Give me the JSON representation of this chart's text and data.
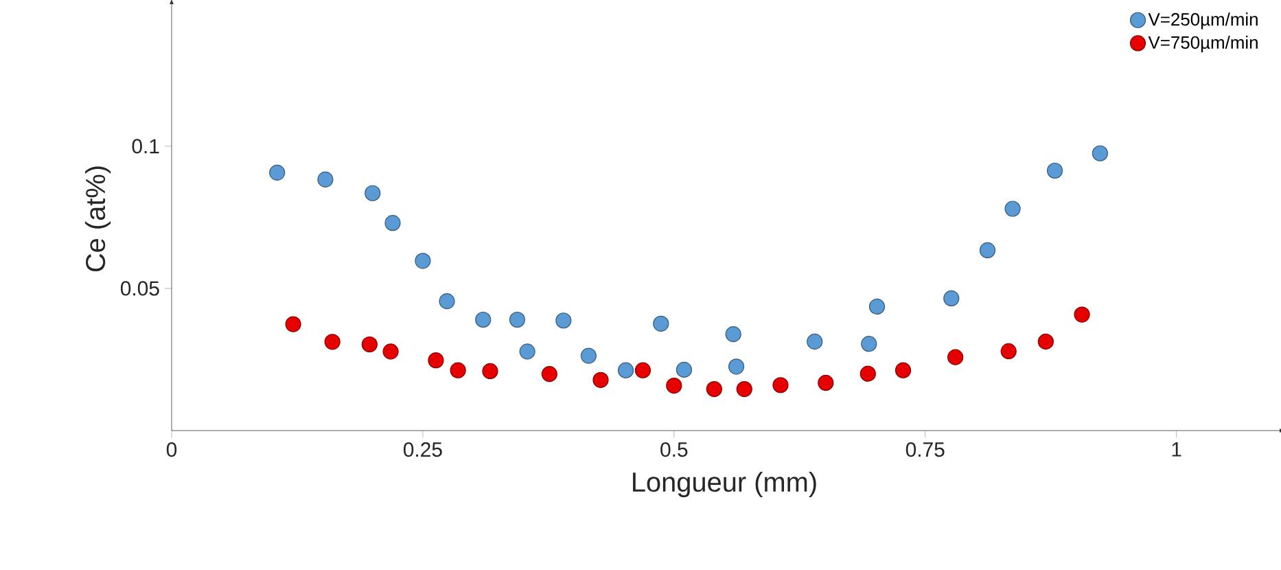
{
  "chart_data": {
    "type": "scatter",
    "xlabel": "Longueur (mm)",
    "ylabel": "Ce (at%)",
    "xlim": [
      0,
      1.1
    ],
    "ylim": [
      0,
      0.149
    ],
    "xticks": [
      0,
      0.25,
      0.5,
      0.75,
      1
    ],
    "yticks": [
      0.05,
      0.1
    ],
    "grid": false,
    "legend": "top right",
    "series": [
      {
        "name": "V=250µm/min",
        "color": "#5b9bd5",
        "x": [
          0.105,
          0.153,
          0.2,
          0.22,
          0.25,
          0.274,
          0.31,
          0.344,
          0.354,
          0.39,
          0.415,
          0.452,
          0.487,
          0.51,
          0.559,
          0.562,
          0.64,
          0.694,
          0.702,
          0.776,
          0.812,
          0.837,
          0.879,
          0.924
        ],
        "values": [
          0.0907,
          0.0883,
          0.0835,
          0.073,
          0.0597,
          0.0455,
          0.039,
          0.039,
          0.0278,
          0.0387,
          0.0263,
          0.0212,
          0.0376,
          0.0214,
          0.0339,
          0.0225,
          0.0313,
          0.0305,
          0.0436,
          0.0465,
          0.0634,
          0.078,
          0.0914,
          0.0975
        ]
      },
      {
        "name": "V=750µm/min",
        "color": "#e60000",
        "x": [
          0.121,
          0.16,
          0.197,
          0.218,
          0.263,
          0.285,
          0.317,
          0.376,
          0.427,
          0.469,
          0.5,
          0.54,
          0.57,
          0.606,
          0.651,
          0.693,
          0.728,
          0.78,
          0.833,
          0.87,
          0.906
        ],
        "values": [
          0.0374,
          0.0312,
          0.0303,
          0.0278,
          0.0247,
          0.0212,
          0.0209,
          0.0199,
          0.0178,
          0.0212,
          0.0158,
          0.0146,
          0.0146,
          0.016,
          0.0168,
          0.02,
          0.0212,
          0.0258,
          0.0279,
          0.0313,
          0.0408
        ]
      }
    ]
  }
}
